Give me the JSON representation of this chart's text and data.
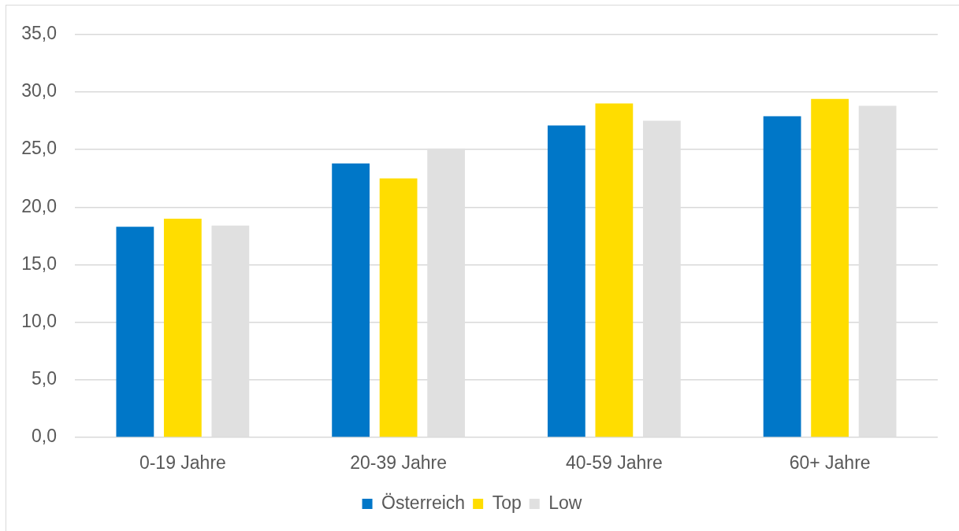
{
  "chart_data": {
    "type": "bar",
    "categories": [
      "0-19 Jahre",
      "20-39 Jahre",
      "40-59 Jahre",
      "60+ Jahre"
    ],
    "series": [
      {
        "name": "Österreich",
        "color": "#0077c8",
        "values": [
          18.3,
          23.8,
          27.1,
          27.9
        ]
      },
      {
        "name": "Top",
        "color": "#ffdd00",
        "values": [
          19.0,
          22.5,
          29.0,
          29.4
        ]
      },
      {
        "name": "Low",
        "color": "#e0e0e0",
        "values": [
          18.4,
          25.1,
          27.5,
          28.8
        ]
      }
    ],
    "ylim": [
      0,
      35
    ],
    "yticks": [
      {
        "value": 0,
        "label": "0,0"
      },
      {
        "value": 5,
        "label": "5,0"
      },
      {
        "value": 10,
        "label": "10,0"
      },
      {
        "value": 15,
        "label": "15,0"
      },
      {
        "value": 20,
        "label": "20,0"
      },
      {
        "value": 25,
        "label": "25,0"
      },
      {
        "value": 30,
        "label": "30,0"
      },
      {
        "value": 35,
        "label": "35,0"
      }
    ],
    "grid": "y",
    "legend": "bottom"
  }
}
